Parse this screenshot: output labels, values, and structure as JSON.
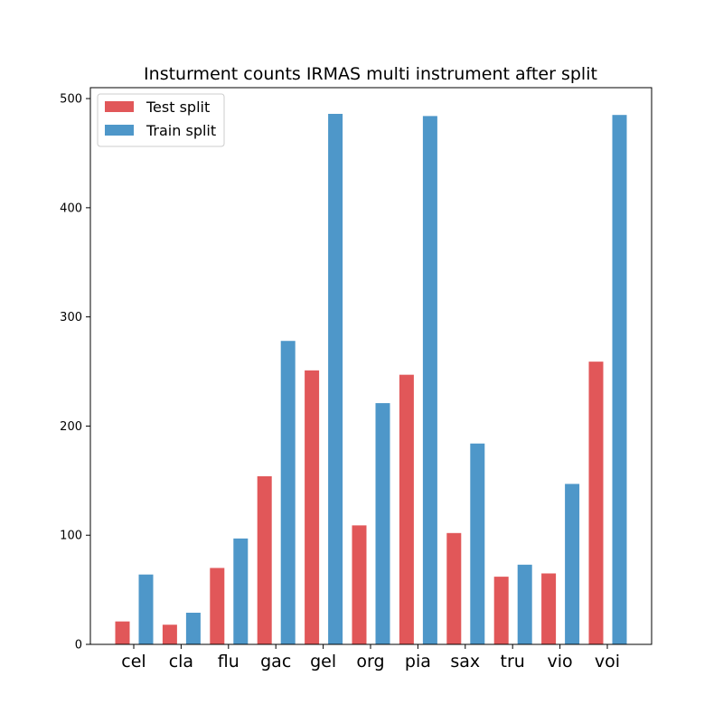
{
  "chart_data": {
    "type": "bar",
    "title": "Insturment counts IRMAS multi instrument after split",
    "xlabel": "",
    "ylabel": "",
    "categories": [
      "cel",
      "cla",
      "flu",
      "gac",
      "gel",
      "org",
      "pia",
      "sax",
      "tru",
      "vio",
      "voi"
    ],
    "series": [
      {
        "name": "Test split",
        "color": "#e15759",
        "values": [
          21,
          18,
          70,
          154,
          251,
          109,
          247,
          102,
          62,
          65,
          259
        ]
      },
      {
        "name": "Train split",
        "color": "#4e97c9",
        "values": [
          64,
          29,
          97,
          278,
          486,
          221,
          484,
          184,
          73,
          147,
          485
        ]
      }
    ],
    "ylim": [
      0,
      510
    ],
    "yticks": [
      0,
      100,
      200,
      300,
      400,
      500
    ],
    "legend_position": "upper-left",
    "grid": false
  }
}
